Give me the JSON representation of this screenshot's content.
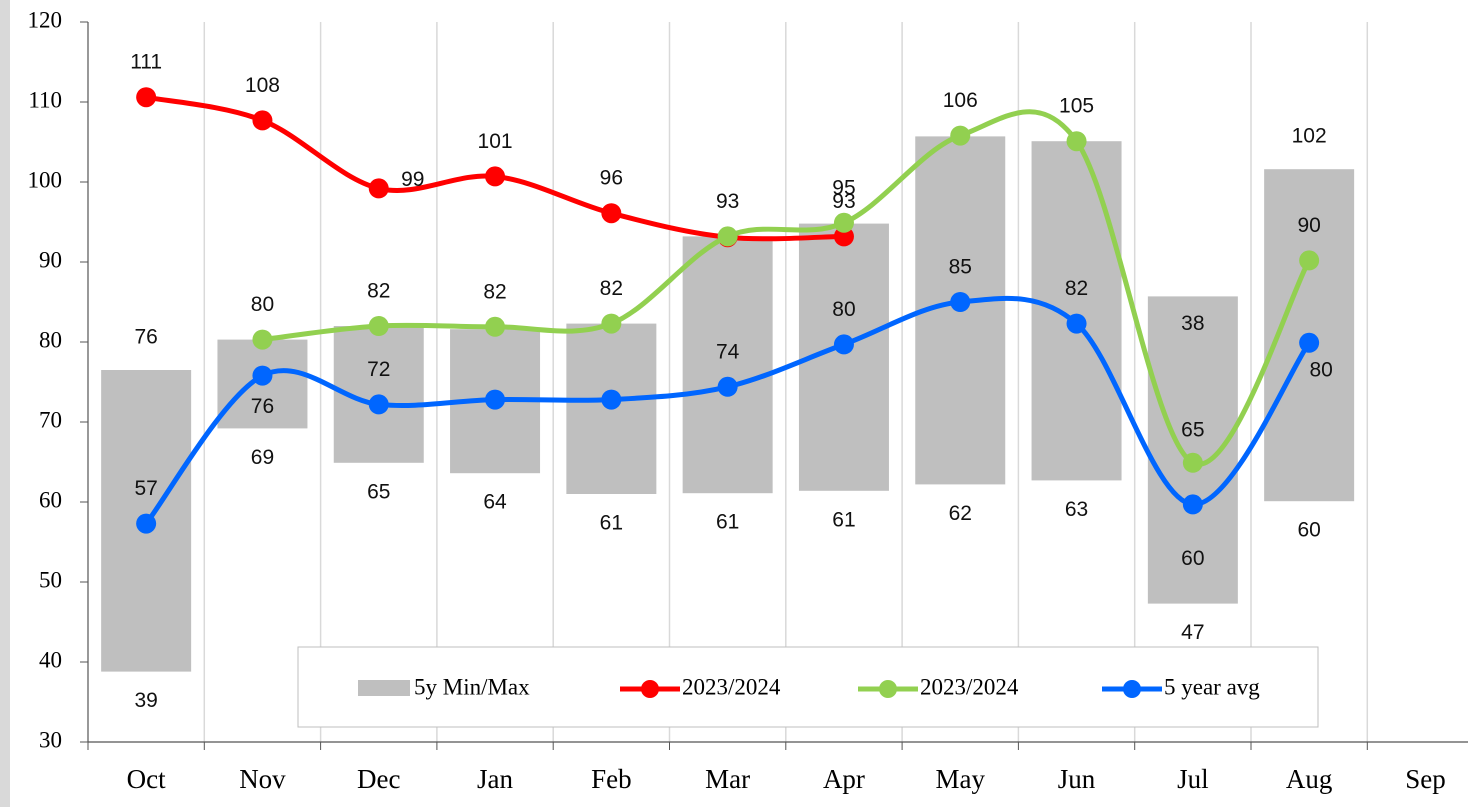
{
  "chart_data": {
    "type": "line",
    "categories": [
      "Oct",
      "Nov",
      "Dec",
      "Jan",
      "Feb",
      "Mar",
      "Apr",
      "May",
      "Jun",
      "Jul",
      "Aug",
      "Sep"
    ],
    "ylim": [
      30,
      120
    ],
    "yticks": [
      30,
      40,
      50,
      60,
      70,
      80,
      90,
      100,
      110,
      120
    ],
    "range": {
      "name": "5y Min/Max",
      "color": "#bfbfbf",
      "low": [
        38.8,
        69.2,
        64.9,
        63.6,
        61.0,
        61.1,
        61.4,
        62.2,
        62.7,
        47.3,
        60.1,
        null
      ],
      "high": [
        76.5,
        80.3,
        82.0,
        81.6,
        82.3,
        93.2,
        94.8,
        105.7,
        105.1,
        85.7,
        101.6,
        null
      ],
      "low_labels": [
        "39",
        "69",
        "65",
        "64",
        "61",
        "61",
        "61",
        "62",
        "63",
        "47",
        "60",
        null
      ],
      "high_labels": [
        "76",
        null,
        null,
        null,
        null,
        null,
        null,
        null,
        null,
        null,
        "102",
        null
      ]
    },
    "annotations": [
      "38"
    ],
    "series": [
      {
        "name": "2023/2024",
        "color": "#ff0000",
        "values": [
          110.6,
          107.7,
          99.2,
          100.7,
          96.1,
          93.1,
          93.2,
          null,
          null,
          null,
          null,
          null
        ],
        "value_labels": [
          "111",
          "108",
          "99",
          "101",
          "96",
          null,
          "93",
          null,
          null,
          null,
          null,
          null
        ]
      },
      {
        "name": "2023/2024",
        "color": "#92d050",
        "values": [
          null,
          80.3,
          82.0,
          81.9,
          82.3,
          93.2,
          94.9,
          105.8,
          105.1,
          64.9,
          90.2,
          null
        ],
        "value_labels": [
          null,
          "80",
          "82",
          "82",
          "82",
          "93",
          "95",
          "106",
          "105",
          "65",
          "90",
          null
        ]
      },
      {
        "name": "5 year avg",
        "color": "#0066ff",
        "values": [
          57.3,
          75.8,
          72.2,
          72.8,
          72.8,
          74.4,
          79.7,
          85.0,
          82.3,
          59.7,
          79.9,
          null
        ],
        "value_labels": [
          "57",
          "76",
          "72",
          null,
          null,
          "74",
          "80",
          "85",
          "82",
          "60",
          "80",
          null
        ]
      }
    ]
  }
}
